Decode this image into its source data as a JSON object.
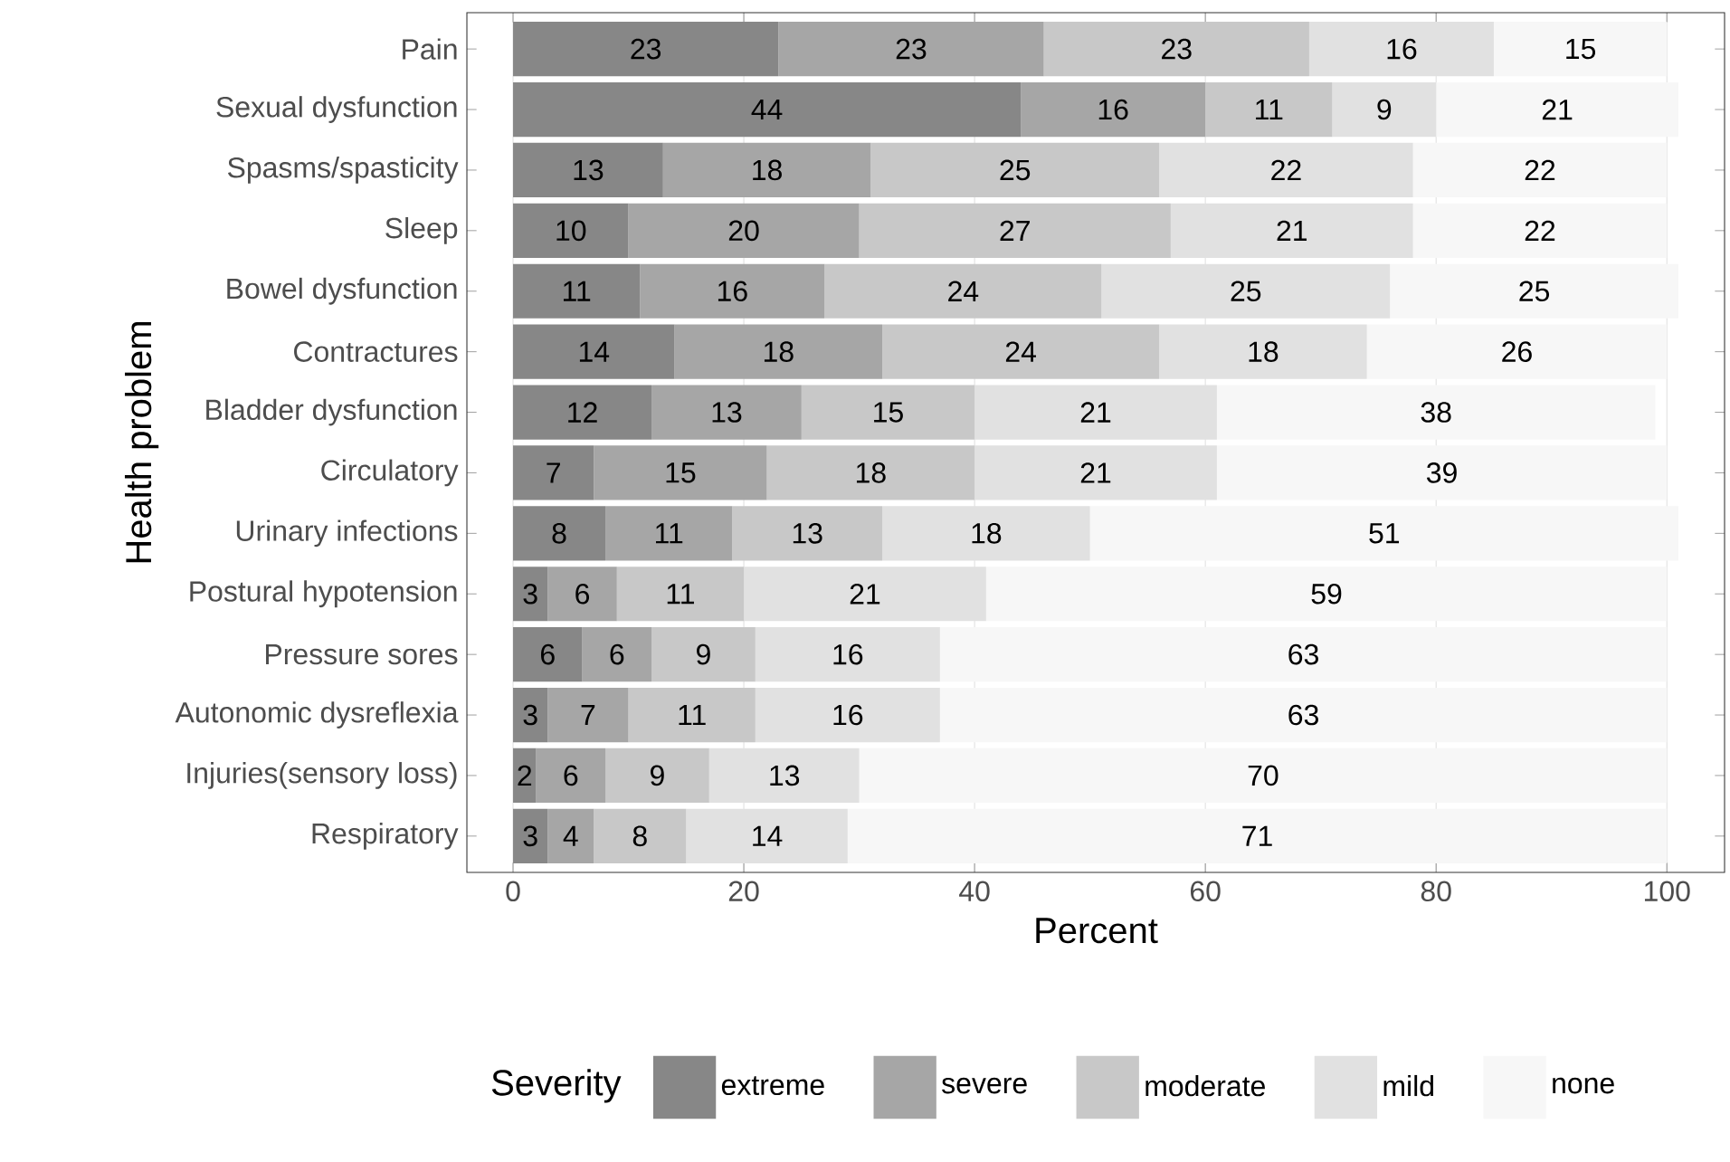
{
  "chart_data": {
    "type": "bar",
    "orientation": "horizontal",
    "stacked": true,
    "xlabel": "Percent",
    "ylabel": "Health problem",
    "legend_title": "Severity",
    "legend": "bottom",
    "grid": "x",
    "data_labels": true,
    "categories": [
      "Pain",
      "Sexual dysfunction",
      "Spasms/spasticity",
      "Sleep",
      "Bowel dysfunction",
      "Contractures",
      "Bladder dysfunction",
      "Circulatory",
      "Urinary infections",
      "Postural hypotension",
      "Pressure sores",
      "Autonomic dysreflexia",
      "Injuries(sensory loss)",
      "Respiratory"
    ],
    "xlim": [
      -4,
      105
    ],
    "xticks": [
      0,
      20,
      40,
      60,
      80,
      100
    ],
    "series": [
      {
        "name": "extreme",
        "color": "#878787",
        "values": [
          23,
          44,
          13,
          10,
          11,
          14,
          12,
          7,
          8,
          3,
          6,
          3,
          2,
          3
        ]
      },
      {
        "name": "severe",
        "color": "#a6a6a6",
        "values": [
          23,
          16,
          18,
          20,
          16,
          18,
          13,
          15,
          11,
          6,
          6,
          7,
          6,
          4
        ]
      },
      {
        "name": "moderate",
        "color": "#c8c8c8",
        "values": [
          23,
          11,
          25,
          27,
          24,
          24,
          15,
          18,
          13,
          11,
          9,
          11,
          9,
          8
        ]
      },
      {
        "name": "mild",
        "color": "#e1e1e1",
        "values": [
          16,
          9,
          22,
          21,
          25,
          18,
          21,
          21,
          18,
          21,
          16,
          16,
          13,
          14
        ]
      },
      {
        "name": "none",
        "color": "#f7f7f7",
        "values": [
          15,
          21,
          22,
          22,
          25,
          26,
          38,
          39,
          51,
          59,
          63,
          63,
          70,
          71
        ]
      }
    ]
  }
}
